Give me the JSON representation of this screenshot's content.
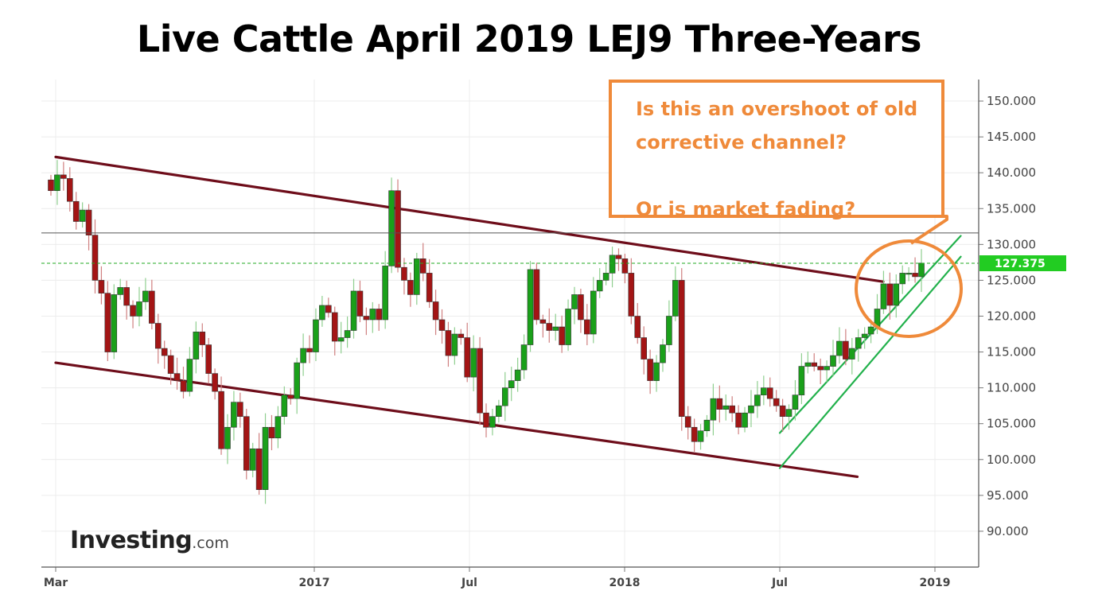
{
  "title": "Live Cattle April 2019 LEJ9 Three-Years",
  "callout": {
    "line1": "Is this an overshoot of old",
    "line2": "corrective channel?",
    "line3": "Or is market fading?"
  },
  "logo": {
    "brand": "Investing",
    "suffix": ".com"
  },
  "colors": {
    "bull": "#1aa01a",
    "bear": "#a31515",
    "bear_wick": "#d08080",
    "bull_wick": "#8fcf8f",
    "channel_old": "#6e0d1a",
    "channel_new": "#22b14c",
    "callout": "#ef8a3a",
    "price_badge": "#22cc22"
  },
  "chart_data": {
    "type": "candlestick",
    "title": "Live Cattle April 2019 LEJ9 Three-Years",
    "interval": "weekly",
    "ylim": [
      85,
      153
    ],
    "y_ticks": [
      "150.000",
      "145.000",
      "140.000",
      "135.000",
      "130.000",
      "125.000",
      "120.000",
      "115.000",
      "110.000",
      "105.000",
      "100.000",
      "95.000",
      "90.000"
    ],
    "x_ticks": [
      "Mar",
      "2017",
      "Jul",
      "2018",
      "Jul",
      "2019"
    ],
    "last_price": "127.375",
    "last_price_value": 127.375,
    "horizontal_level": 131.6,
    "grid": true,
    "old_channel": {
      "upper": {
        "from": [
          "2016-03",
          142.2
        ],
        "to": [
          "2018-11",
          124.8
        ]
      },
      "lower": {
        "from": [
          "2016-03",
          113.5
        ],
        "to": [
          "2018-10",
          97.6
        ]
      }
    },
    "new_channel": {
      "upper": {
        "from": [
          "2018-07",
          103.7
        ],
        "to": [
          "2019-02",
          131.2
        ]
      },
      "lower": {
        "from": [
          "2018-07",
          98.8
        ],
        "to": [
          "2019-02",
          128.3
        ]
      }
    },
    "closes": [
      137.5,
      139.7,
      139.2,
      136.0,
      133.2,
      134.8,
      131.3,
      125.0,
      123.2,
      115.0,
      123.0,
      124.0,
      121.5,
      120.0,
      122.0,
      123.5,
      119.0,
      115.5,
      114.5,
      112.0,
      111.0,
      109.5,
      114.0,
      117.8,
      116.0,
      112.0,
      109.5,
      101.5,
      104.5,
      108.0,
      106.0,
      98.5,
      101.5,
      95.8,
      104.5,
      103.0,
      106.0,
      109.0,
      108.5,
      113.5,
      115.5,
      115.0,
      119.5,
      121.5,
      120.5,
      116.5,
      117.0,
      118.0,
      123.5,
      120.0,
      119.5,
      121.0,
      119.5,
      127.0,
      137.5,
      126.8,
      125.0,
      123.0,
      128.0,
      126.0,
      122.0,
      119.5,
      118.0,
      114.5,
      117.5,
      117.0,
      111.5,
      115.5,
      106.5,
      104.5,
      106.0,
      107.5,
      110.0,
      111.0,
      112.5,
      116.0,
      126.5,
      119.5,
      119.0,
      118.0,
      118.5,
      116.0,
      121.0,
      123.0,
      119.5,
      117.5,
      123.5,
      125.0,
      126.0,
      128.5,
      128.0,
      126.0,
      120.0,
      117.0,
      114.0,
      111.0,
      113.5,
      116.0,
      120.0,
      125.0,
      106.0,
      104.5,
      102.5,
      104.0,
      105.5,
      108.5,
      107.0,
      107.5,
      106.5,
      104.5,
      106.5,
      107.5,
      109.0,
      110.0,
      108.5,
      107.5,
      106.0,
      107.0,
      109.0,
      113.0,
      113.5,
      113.0,
      112.5,
      113.0,
      114.5,
      116.5,
      114.0,
      115.5,
      117.0,
      117.5,
      118.5,
      121.0,
      124.5,
      121.5,
      124.5,
      126.0,
      126.0,
      125.5,
      127.4
    ]
  }
}
